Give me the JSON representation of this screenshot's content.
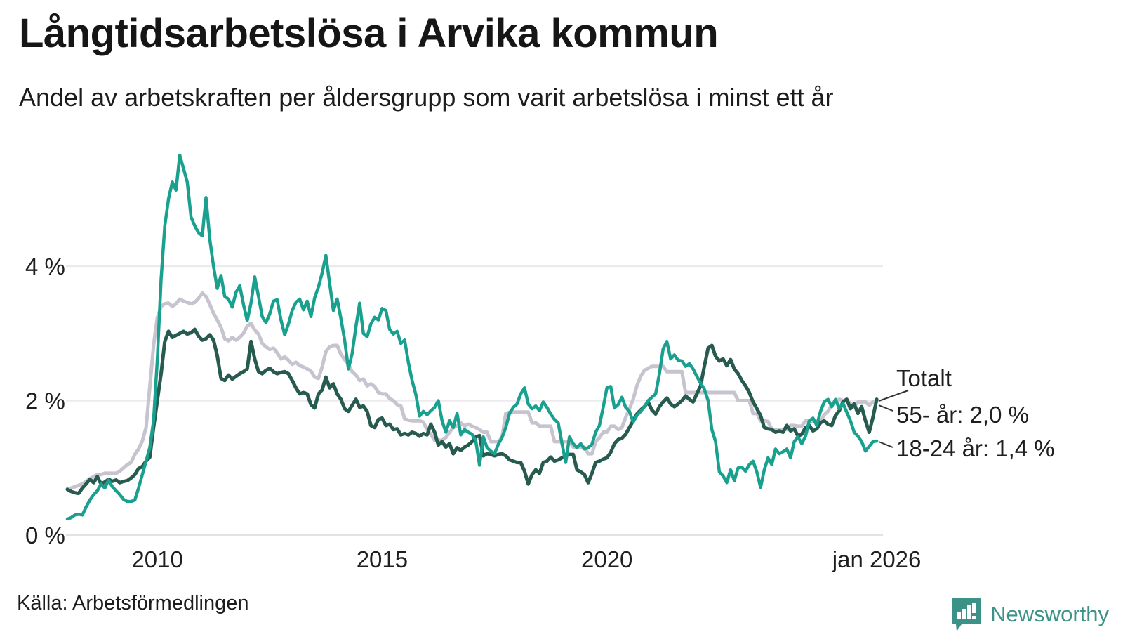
{
  "header": {
    "title": "Långtidsarbetslösa i Arvika kommun",
    "subtitle": "Andel av arbetskraften per åldersgrupp som varit arbetslösa i minst ett år"
  },
  "footer": {
    "source": "Källa: Arbetsförmedlingen",
    "brand": {
      "name": "Newsworthy",
      "color": "#3d9288",
      "icon": "bar-chart-speech-bubble-icon"
    }
  },
  "chart_data": {
    "type": "line",
    "title": "Långtidsarbetslösa i Arvika kommun",
    "subtitle": "Andel av arbetskraften per åldersgrupp som varit arbetslösa i minst ett år",
    "unit": "% av arbetskraften",
    "x_start_year": 2008,
    "x_step_months": 1,
    "x_end_label": "jan 2026",
    "ylim": [
      0,
      5.8
    ],
    "grid": "horizontal",
    "y_ticks": [
      {
        "value": 0,
        "label": "0 %"
      },
      {
        "value": 2,
        "label": "2 %"
      },
      {
        "value": 4,
        "label": "4 %"
      }
    ],
    "x_ticks": [
      {
        "t": 2010,
        "label": "2010"
      },
      {
        "t": 2015,
        "label": "2015"
      },
      {
        "t": 2020,
        "label": "2020"
      },
      {
        "t": 2026,
        "label": "jan 2026"
      }
    ],
    "series": [
      {
        "name": "Totalt",
        "color": "#c7c3cf",
        "width": 5,
        "end_label": "Totalt",
        "end_value": 2.0,
        "values": [
          0.69,
          0.7,
          0.72,
          0.74,
          0.76,
          0.8,
          0.84,
          0.87,
          0.9,
          0.9,
          0.92,
          0.92,
          0.92,
          0.92,
          0.95,
          1.0,
          1.05,
          1.08,
          1.2,
          1.28,
          1.4,
          1.6,
          2.2,
          2.82,
          3.23,
          3.4,
          3.44,
          3.45,
          3.4,
          3.44,
          3.51,
          3.48,
          3.46,
          3.44,
          3.46,
          3.52,
          3.6,
          3.55,
          3.43,
          3.3,
          3.2,
          3.09,
          2.92,
          2.89,
          2.94,
          2.9,
          2.94,
          3.0,
          3.11,
          3.15,
          3.05,
          2.99,
          2.85,
          2.8,
          2.76,
          2.78,
          2.71,
          2.62,
          2.65,
          2.6,
          2.54,
          2.57,
          2.52,
          2.5,
          2.47,
          2.44,
          2.35,
          2.33,
          2.5,
          2.73,
          2.8,
          2.82,
          2.82,
          2.69,
          2.61,
          2.54,
          2.43,
          2.38,
          2.3,
          2.32,
          2.22,
          2.25,
          2.21,
          2.12,
          2.1,
          2.1,
          2.03,
          2.0,
          1.94,
          1.92,
          1.73,
          1.71,
          1.7,
          1.7,
          1.7,
          1.68,
          1.57,
          1.5,
          1.41,
          1.41,
          1.41,
          1.45,
          1.53,
          1.6,
          1.62,
          1.67,
          1.62,
          1.65,
          1.62,
          1.6,
          1.57,
          1.53,
          1.53,
          1.39,
          1.39,
          1.39,
          1.45,
          1.81,
          1.83,
          1.83,
          1.83,
          1.83,
          1.83,
          1.83,
          1.67,
          1.67,
          1.62,
          1.62,
          1.62,
          1.62,
          1.39,
          1.39,
          1.39,
          1.39,
          1.39,
          1.31,
          1.31,
          1.31,
          1.31,
          1.21,
          1.21,
          1.39,
          1.45,
          1.53,
          1.53,
          1.62,
          1.62,
          1.57,
          1.6,
          1.75,
          1.88,
          2.02,
          2.22,
          2.36,
          2.45,
          2.48,
          2.51,
          2.51,
          2.51,
          2.51,
          2.43,
          2.43,
          2.43,
          2.43,
          2.43,
          2.12,
          2.12,
          2.12,
          2.12,
          2.12,
          2.12,
          2.12,
          2.12,
          2.12,
          2.12,
          2.12,
          2.12,
          2.12,
          2.12,
          2.0,
          2.0,
          2.0,
          2.0,
          1.81,
          1.81,
          1.7,
          1.7,
          1.69,
          1.57,
          1.57,
          1.57,
          1.57,
          1.57,
          1.63,
          1.63,
          1.62,
          1.62,
          1.7,
          1.7,
          1.69,
          1.69,
          1.69,
          1.79,
          1.84,
          1.94,
          1.98,
          2.02,
          2.0,
          2.0,
          1.96,
          1.91,
          1.98,
          1.98,
          1.98,
          1.93,
          1.98,
          2.0
        ]
      },
      {
        "name": "55- år",
        "color": "#275b4f",
        "width": 5,
        "end_label": "55- år: 2,0 %",
        "end_value": 2.0,
        "values": [
          0.68,
          0.65,
          0.63,
          0.62,
          0.7,
          0.76,
          0.83,
          0.78,
          0.87,
          0.76,
          0.79,
          0.83,
          0.8,
          0.82,
          0.78,
          0.8,
          0.81,
          0.85,
          0.9,
          0.99,
          1.02,
          1.1,
          1.16,
          1.6,
          2.0,
          2.4,
          2.88,
          3.03,
          2.94,
          2.97,
          3.0,
          3.03,
          2.99,
          3.01,
          3.06,
          2.96,
          2.9,
          2.92,
          2.98,
          2.9,
          2.67,
          2.33,
          2.3,
          2.38,
          2.32,
          2.36,
          2.4,
          2.43,
          2.47,
          2.88,
          2.62,
          2.43,
          2.4,
          2.45,
          2.48,
          2.43,
          2.4,
          2.42,
          2.43,
          2.4,
          2.3,
          2.19,
          2.1,
          2.12,
          2.1,
          1.94,
          1.89,
          2.1,
          2.16,
          2.35,
          2.19,
          2.25,
          2.1,
          2.02,
          1.88,
          1.84,
          1.93,
          2.02,
          1.9,
          1.92,
          1.84,
          1.63,
          1.6,
          1.72,
          1.74,
          1.63,
          1.65,
          1.57,
          1.58,
          1.49,
          1.51,
          1.49,
          1.53,
          1.51,
          1.47,
          1.51,
          1.49,
          1.65,
          1.53,
          1.34,
          1.39,
          1.31,
          1.36,
          1.21,
          1.3,
          1.26,
          1.31,
          1.34,
          1.39,
          1.46,
          1.48,
          1.18,
          1.21,
          1.2,
          1.18,
          1.2,
          1.21,
          1.18,
          1.12,
          1.1,
          1.08,
          1.08,
          0.95,
          0.76,
          0.9,
          0.97,
          0.92,
          1.08,
          1.1,
          1.16,
          1.1,
          1.12,
          1.15,
          1.18,
          1.2,
          1.2,
          0.97,
          0.94,
          0.9,
          0.78,
          0.92,
          1.08,
          1.1,
          1.13,
          1.15,
          1.23,
          1.36,
          1.42,
          1.44,
          1.5,
          1.6,
          1.7,
          1.8,
          1.86,
          1.91,
          1.98,
          1.86,
          1.8,
          1.91,
          1.98,
          2.04,
          1.95,
          1.91,
          1.95,
          2.0,
          2.07,
          2.02,
          1.98,
          2.1,
          2.22,
          2.51,
          2.78,
          2.82,
          2.66,
          2.59,
          2.62,
          2.52,
          2.61,
          2.47,
          2.4,
          2.3,
          2.22,
          2.12,
          1.98,
          1.88,
          1.78,
          1.6,
          1.58,
          1.57,
          1.53,
          1.55,
          1.53,
          1.63,
          1.55,
          1.58,
          1.47,
          1.5,
          1.6,
          1.63,
          1.55,
          1.58,
          1.67,
          1.7,
          1.65,
          1.63,
          1.78,
          1.85,
          1.98,
          2.02,
          1.88,
          1.95,
          1.81,
          1.91,
          1.7,
          1.53,
          1.75,
          2.02
        ]
      },
      {
        "name": "18-24 år",
        "color": "#1aa08e",
        "width": 4.5,
        "end_label": "18-24 år: 1,4 %",
        "end_value": 1.4,
        "values": [
          0.24,
          0.26,
          0.3,
          0.31,
          0.3,
          0.42,
          0.52,
          0.6,
          0.66,
          0.76,
          0.7,
          0.82,
          0.72,
          0.66,
          0.6,
          0.53,
          0.5,
          0.5,
          0.52,
          0.7,
          0.9,
          1.1,
          1.3,
          1.7,
          2.6,
          3.8,
          4.6,
          5.0,
          5.25,
          5.13,
          5.65,
          5.45,
          5.25,
          4.73,
          4.6,
          4.5,
          4.45,
          5.02,
          4.4,
          4.0,
          3.67,
          3.86,
          3.55,
          3.51,
          3.39,
          3.61,
          3.71,
          3.43,
          3.19,
          3.45,
          3.84,
          3.55,
          3.25,
          3.16,
          3.29,
          3.48,
          3.5,
          3.2,
          2.98,
          3.14,
          3.34,
          3.46,
          3.51,
          3.35,
          3.48,
          3.25,
          3.53,
          3.69,
          3.9,
          4.16,
          3.74,
          3.34,
          3.51,
          3.22,
          2.9,
          2.47,
          2.7,
          3.1,
          3.45,
          3.0,
          2.95,
          3.14,
          3.24,
          3.2,
          3.37,
          3.34,
          3.06,
          2.99,
          3.03,
          2.85,
          2.9,
          2.57,
          2.3,
          2.09,
          1.77,
          1.84,
          1.79,
          1.85,
          1.9,
          2.0,
          1.7,
          1.53,
          1.7,
          1.6,
          1.81,
          1.49,
          1.57,
          1.53,
          1.5,
          1.4,
          1.04,
          1.46,
          1.3,
          1.25,
          1.21,
          1.35,
          1.45,
          1.6,
          1.81,
          1.9,
          1.95,
          2.1,
          2.19,
          1.95,
          1.88,
          1.92,
          1.85,
          1.98,
          1.9,
          1.8,
          1.72,
          1.67,
          1.36,
          1.08,
          1.46,
          1.36,
          1.3,
          1.36,
          1.28,
          1.3,
          1.35,
          1.53,
          1.63,
          1.9,
          2.19,
          2.21,
          1.89,
          1.94,
          2.05,
          1.9,
          1.84,
          1.68,
          1.78,
          1.84,
          1.91,
          2.0,
          2.05,
          2.1,
          2.4,
          2.77,
          2.88,
          2.62,
          2.68,
          2.6,
          2.59,
          2.51,
          2.55,
          2.47,
          2.36,
          2.26,
          2.17,
          2.0,
          1.57,
          1.39,
          0.94,
          0.88,
          0.78,
          0.97,
          0.81,
          1.0,
          1.01,
          0.95,
          1.05,
          1.1,
          0.94,
          0.71,
          0.97,
          1.15,
          1.05,
          1.28,
          1.21,
          1.24,
          1.28,
          1.15,
          1.39,
          1.46,
          1.36,
          1.47,
          1.7,
          1.74,
          1.63,
          1.84,
          1.98,
          2.02,
          1.91,
          2.02,
          1.88,
          1.96,
          1.83,
          1.7,
          1.53,
          1.47,
          1.39,
          1.25,
          1.32,
          1.39,
          1.4
        ]
      }
    ]
  }
}
